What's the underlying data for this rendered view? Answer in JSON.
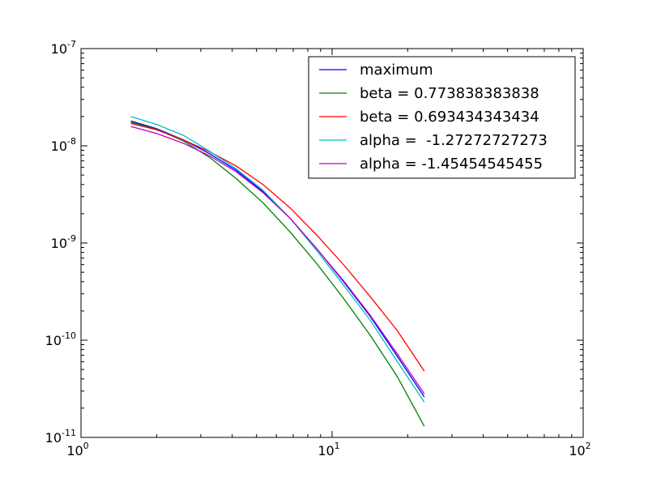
{
  "chart_data": {
    "type": "line",
    "title": "",
    "xlabel": "",
    "ylabel": "",
    "xscale": "log",
    "yscale": "log",
    "xlim": [
      1,
      100
    ],
    "ylim": [
      1e-11,
      1e-07
    ],
    "grid": false,
    "legend_position": "top-right",
    "x_ticks": [
      {
        "value": 1,
        "base": "10",
        "exp": "0"
      },
      {
        "value": 10,
        "base": "10",
        "exp": "1"
      },
      {
        "value": 100,
        "base": "10",
        "exp": "2"
      }
    ],
    "y_ticks": [
      {
        "value": 1e-11,
        "base": "10",
        "exp": "-11"
      },
      {
        "value": 1e-10,
        "base": "10",
        "exp": "-10"
      },
      {
        "value": 1e-09,
        "base": "10",
        "exp": "-9"
      },
      {
        "value": 1e-08,
        "base": "10",
        "exp": "-8"
      },
      {
        "value": 1e-07,
        "base": "10",
        "exp": "-7"
      }
    ],
    "x": [
      1.58,
      2.0,
      2.56,
      3.25,
      4.15,
      5.3,
      6.8,
      8.7,
      11.1,
      14.2,
      18.2,
      23.3
    ],
    "series": [
      {
        "name": "maximum",
        "color": "#0000ff",
        "values": [
          1.8e-08,
          1.5e-08,
          1.15e-08,
          8.3e-09,
          5.6e-09,
          3.4e-09,
          1.8e-09,
          8.7e-10,
          4e-10,
          1.75e-10,
          6.8e-11,
          2.6e-11
        ]
      },
      {
        "name": "beta = 0.773838383838",
        "color": "#008000",
        "values": [
          1.75e-08,
          1.48e-08,
          1.12e-08,
          7.6e-09,
          4.6e-09,
          2.6e-09,
          1.3e-09,
          6.1e-10,
          2.7e-10,
          1.12e-10,
          4.2e-11,
          1.3e-11
        ]
      },
      {
        "name": "beta = 0.693434343434",
        "color": "#ff0000",
        "values": [
          1.7e-08,
          1.46e-08,
          1.15e-08,
          8.7e-09,
          6.2e-09,
          4e-09,
          2.3e-09,
          1.2e-09,
          6e-10,
          2.8e-10,
          1.25e-10,
          4.8e-11
        ]
      },
      {
        "name": "alpha =  -1.27272727273",
        "color": "#00bfbf",
        "values": [
          2e-08,
          1.66e-08,
          1.28e-08,
          8.8e-09,
          5.8e-09,
          3.5e-09,
          1.8e-09,
          8.3e-10,
          3.7e-10,
          1.6e-10,
          6e-11,
          2.3e-11
        ]
      },
      {
        "name": "alpha = -1.45454545455",
        "color": "#bf00bf",
        "values": [
          1.58e-08,
          1.34e-08,
          1.06e-08,
          7.9e-09,
          5.4e-09,
          3.3e-09,
          1.8e-09,
          8.7e-10,
          4.1e-10,
          1.8e-10,
          7.2e-11,
          2.8e-11
        ]
      }
    ]
  }
}
